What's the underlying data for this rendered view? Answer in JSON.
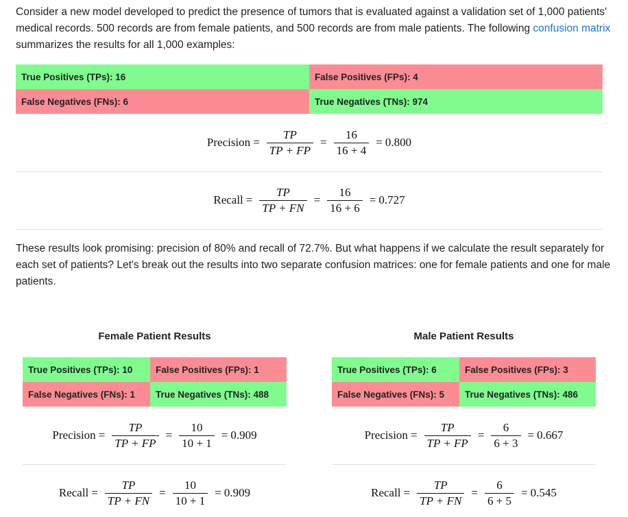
{
  "intro": {
    "text_before": "Consider a new model developed to predict the presence of tumors that is evaluated against a validation set of 1,000 patients' medical records. 500 records are from female patients, and 500 records are from male patients. The following ",
    "link": "confusion matrix",
    "text_after": " summarizes the results for all 1,000 examples:"
  },
  "overall": {
    "tp": "True Positives (TPs): 16",
    "fp": "False Positives (FPs): 4",
    "fn": "False Negatives (FNs): 6",
    "tn": "True Negatives (TNs): 974",
    "precision": {
      "label": "Precision",
      "num": "TP",
      "den": "TP + FP",
      "num2": "16",
      "den2": "16 + 4",
      "result": "0.800"
    },
    "recall": {
      "label": "Recall",
      "num": "TP",
      "den": "TP + FN",
      "num2": "16",
      "den2": "16 + 6",
      "result": "0.727"
    }
  },
  "middle_paragraph": "These results look promising: precision of 80% and recall of 72.7%. But what happens if we calculate the result separately for each set of patients? Let's break out the results into two separate confusion matrices: one for female patients and one for male patients.",
  "female": {
    "title": "Female Patient Results",
    "tp": "True Positives (TPs): 10",
    "fp": "False Positives (FPs): 1",
    "fn": "False Negatives (FNs): 1",
    "tn": "True Negatives (TNs): 488",
    "precision": {
      "label": "Precision",
      "num": "TP",
      "den": "TP + FP",
      "num2": "10",
      "den2": "10 + 1",
      "result": "0.909"
    },
    "recall": {
      "label": "Recall",
      "num": "TP",
      "den": "TP + FN",
      "num2": "10",
      "den2": "10 + 1",
      "result": "0.909"
    }
  },
  "male": {
    "title": "Male Patient Results",
    "tp": "True Positives (TPs): 6",
    "fp": "False Positives (FPs): 3",
    "fn": "False Negatives (FNs): 5",
    "tn": "True Negatives (TNs): 486",
    "precision": {
      "label": "Precision",
      "num": "TP",
      "den": "TP + FP",
      "num2": "6",
      "den2": "6 + 3",
      "result": "0.667"
    },
    "recall": {
      "label": "Recall",
      "num": "TP",
      "den": "TP + FN",
      "num2": "6",
      "den2": "6 + 5",
      "result": "0.545"
    }
  },
  "colors": {
    "positive_cell": "#80fc8f",
    "negative_cell": "#fc8c94",
    "link": "#1a73e8"
  }
}
